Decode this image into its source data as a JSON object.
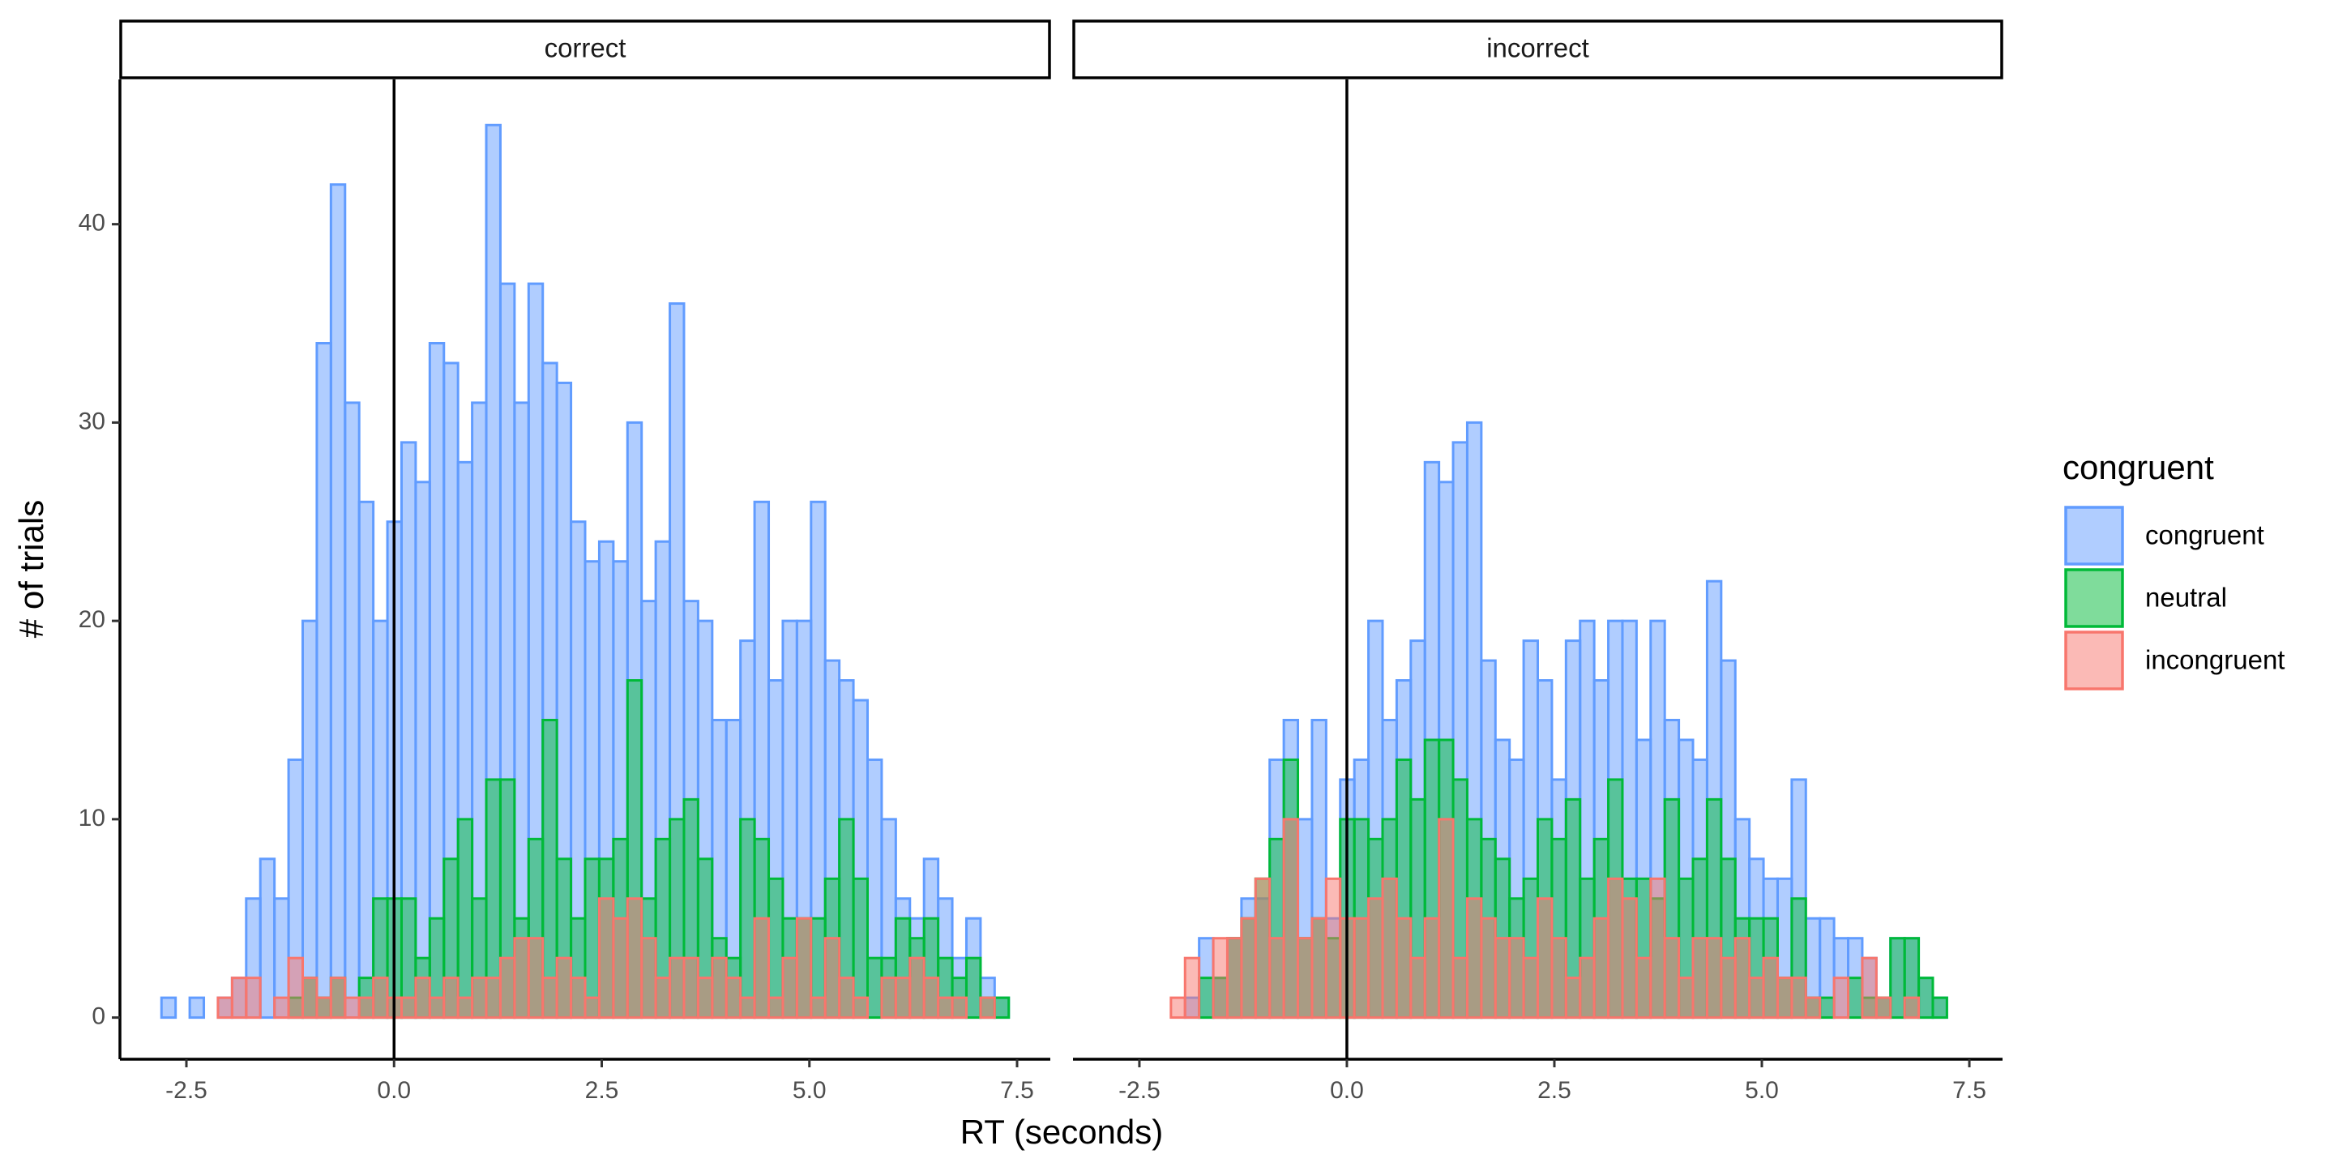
{
  "x_label": "RT (seconds)",
  "y_label": "# of trials",
  "legend_title": "congruent",
  "chart_data": [
    {
      "type": "histogram",
      "title": "correct",
      "bins": [
        -2.8,
        -2.63,
        -2.46,
        -2.29,
        -2.12,
        -1.95,
        -1.78,
        -1.61,
        -1.44,
        -1.27,
        -1.1,
        -0.93,
        -0.76,
        -0.59,
        -0.42,
        -0.25,
        -0.08,
        0.09,
        0.26,
        0.43,
        0.6,
        0.77,
        0.94,
        1.11,
        1.28,
        1.45,
        1.62,
        1.79,
        1.96,
        2.13,
        2.3,
        2.47,
        2.64,
        2.81,
        2.98,
        3.15,
        3.32,
        3.49,
        3.66,
        3.83,
        4,
        4.17,
        4.34,
        4.51,
        4.68,
        4.85,
        5.02,
        5.19,
        5.36,
        5.53,
        5.7,
        5.87,
        6.04,
        6.21,
        6.38,
        6.55,
        6.72,
        6.89,
        7.06,
        7.23,
        7.4
      ],
      "series": [
        {
          "name": "congruent",
          "color": "#619CFF",
          "values": [
            1,
            0,
            1,
            0,
            1,
            2,
            6,
            8,
            6,
            13,
            20,
            34,
            42,
            31,
            26,
            20,
            25,
            29,
            27,
            34,
            33,
            28,
            31,
            45,
            37,
            31,
            37,
            33,
            32,
            25,
            23,
            24,
            23,
            30,
            21,
            24,
            36,
            21,
            20,
            15,
            15,
            19,
            26,
            17,
            20,
            20,
            26,
            18,
            17,
            16,
            13,
            10,
            6,
            5,
            8,
            6,
            3,
            5,
            2,
            1
          ]
        },
        {
          "name": "neutral",
          "color": "#00BA38",
          "values": [
            0,
            0,
            0,
            0,
            0,
            0,
            0,
            0,
            0,
            1,
            2,
            1,
            2,
            0,
            2,
            6,
            6,
            6,
            3,
            5,
            8,
            10,
            6,
            12,
            12,
            5,
            9,
            15,
            8,
            5,
            8,
            8,
            9,
            17,
            6,
            9,
            10,
            11,
            8,
            4,
            3,
            10,
            9,
            7,
            5,
            5,
            5,
            7,
            10,
            7,
            3,
            3,
            5,
            4,
            5,
            3,
            2,
            3,
            1,
            1
          ]
        },
        {
          "name": "incongruent",
          "color": "#F8766D",
          "values": [
            0,
            0,
            0,
            0,
            1,
            2,
            2,
            0,
            1,
            3,
            2,
            1,
            2,
            1,
            1,
            2,
            1,
            1,
            2,
            1,
            2,
            1,
            2,
            2,
            3,
            4,
            4,
            2,
            3,
            2,
            1,
            6,
            5,
            6,
            4,
            2,
            3,
            3,
            2,
            3,
            2,
            1,
            5,
            1,
            3,
            5,
            1,
            4,
            2,
            1,
            0,
            2,
            2,
            3,
            2,
            1,
            1,
            0,
            1,
            0
          ]
        }
      ],
      "vline": 0,
      "xlim": [
        -3.3,
        7.9
      ],
      "ylim": [
        -2.1,
        47.3
      ],
      "xticks": [
        -2.5,
        {
          "value": 0,
          "label": "0.0"
        },
        2.5,
        {
          "value": 5,
          "label": "5.0"
        },
        7.5
      ],
      "yticks": [
        0,
        10,
        20,
        30,
        40
      ]
    },
    {
      "type": "histogram",
      "title": "incorrect",
      "bins": [
        -2.8,
        -2.63,
        -2.46,
        -2.29,
        -2.12,
        -1.95,
        -1.78,
        -1.61,
        -1.44,
        -1.27,
        -1.1,
        -0.93,
        -0.76,
        -0.59,
        -0.42,
        -0.25,
        -0.08,
        0.09,
        0.26,
        0.43,
        0.6,
        0.77,
        0.94,
        1.11,
        1.28,
        1.45,
        1.62,
        1.79,
        1.96,
        2.13,
        2.3,
        2.47,
        2.64,
        2.81,
        2.98,
        3.15,
        3.32,
        3.49,
        3.66,
        3.83,
        4,
        4.17,
        4.34,
        4.51,
        4.68,
        4.85,
        5.02,
        5.19,
        5.36,
        5.53,
        5.7,
        5.87,
        6.04,
        6.21,
        6.38,
        6.55,
        6.72,
        6.89,
        7.06,
        7.23,
        7.4
      ],
      "series": [
        {
          "name": "congruent",
          "color": "#619CFF",
          "values": [
            0,
            0,
            0,
            0,
            0,
            1,
            4,
            2,
            4,
            6,
            6,
            13,
            15,
            10,
            15,
            5,
            12,
            13,
            20,
            15,
            17,
            19,
            28,
            27,
            29,
            30,
            18,
            14,
            13,
            19,
            17,
            12,
            19,
            20,
            17,
            20,
            20,
            14,
            20,
            15,
            14,
            13,
            22,
            18,
            10,
            8,
            7,
            7,
            12,
            5,
            5,
            4,
            4,
            3,
            1,
            4,
            4,
            2,
            1,
            0
          ]
        },
        {
          "name": "neutral",
          "color": "#00BA38",
          "values": [
            0,
            0,
            0,
            0,
            0,
            0,
            2,
            2,
            4,
            5,
            7,
            9,
            13,
            4,
            5,
            4,
            10,
            10,
            9,
            10,
            13,
            11,
            14,
            14,
            12,
            10,
            9,
            8,
            6,
            7,
            10,
            9,
            11,
            7,
            9,
            12,
            7,
            7,
            6,
            11,
            7,
            8,
            11,
            8,
            5,
            5,
            5,
            2,
            6,
            1,
            1,
            0,
            2,
            1,
            1,
            4,
            4,
            2,
            1,
            0
          ]
        },
        {
          "name": "incongruent",
          "color": "#F8766D",
          "values": [
            0,
            0,
            0,
            0,
            1,
            3,
            0,
            4,
            4,
            5,
            7,
            4,
            10,
            4,
            5,
            7,
            5,
            5,
            6,
            7,
            5,
            3,
            5,
            10,
            3,
            6,
            5,
            4,
            4,
            3,
            6,
            4,
            2,
            3,
            5,
            7,
            6,
            3,
            7,
            4,
            2,
            4,
            4,
            3,
            4,
            2,
            3,
            2,
            2,
            1,
            0,
            2,
            0,
            3,
            1,
            0,
            1,
            0,
            0,
            0
          ]
        }
      ],
      "vline": 0,
      "xlim": [
        -3.3,
        7.9
      ],
      "ylim": [
        -2.1,
        47.3
      ],
      "xticks": [
        -2.5,
        {
          "value": 0,
          "label": "0.0"
        },
        2.5,
        {
          "value": 5,
          "label": "5.0"
        },
        7.5
      ]
    }
  ]
}
